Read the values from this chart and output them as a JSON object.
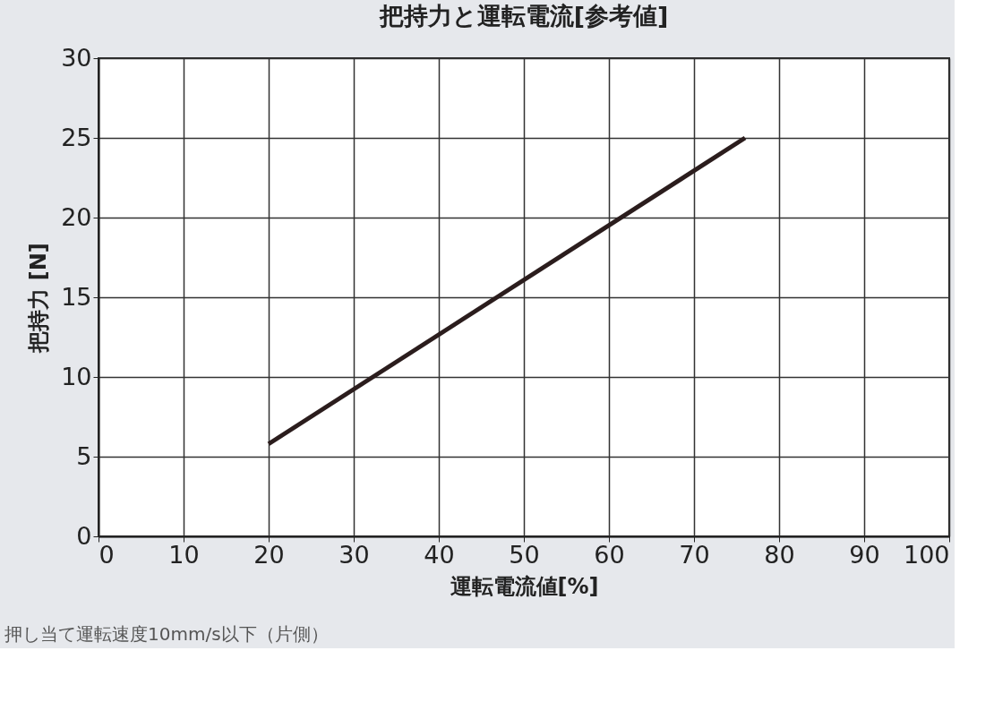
{
  "chart_data": {
    "type": "line",
    "title": "把持力と運転電流[参考値]",
    "xlabel": "運転電流値[%]",
    "ylabel": "把持力 [N]",
    "x": [
      20,
      76
    ],
    "series": [
      {
        "color": "#2b1d1d",
        "values": [
          5.8,
          25
        ]
      }
    ],
    "xlim": [
      0,
      100
    ],
    "xticks": [
      0,
      10,
      20,
      30,
      40,
      50,
      60,
      70,
      80,
      90,
      100
    ],
    "ylim": [
      0,
      30
    ],
    "yticks": [
      0,
      5,
      10,
      15,
      20,
      25,
      30
    ],
    "grid": true,
    "legend": false,
    "marker": "none",
    "line_style": "solid",
    "annotations": [
      "押し当て運転速度10mm/s以下（片側）"
    ]
  }
}
